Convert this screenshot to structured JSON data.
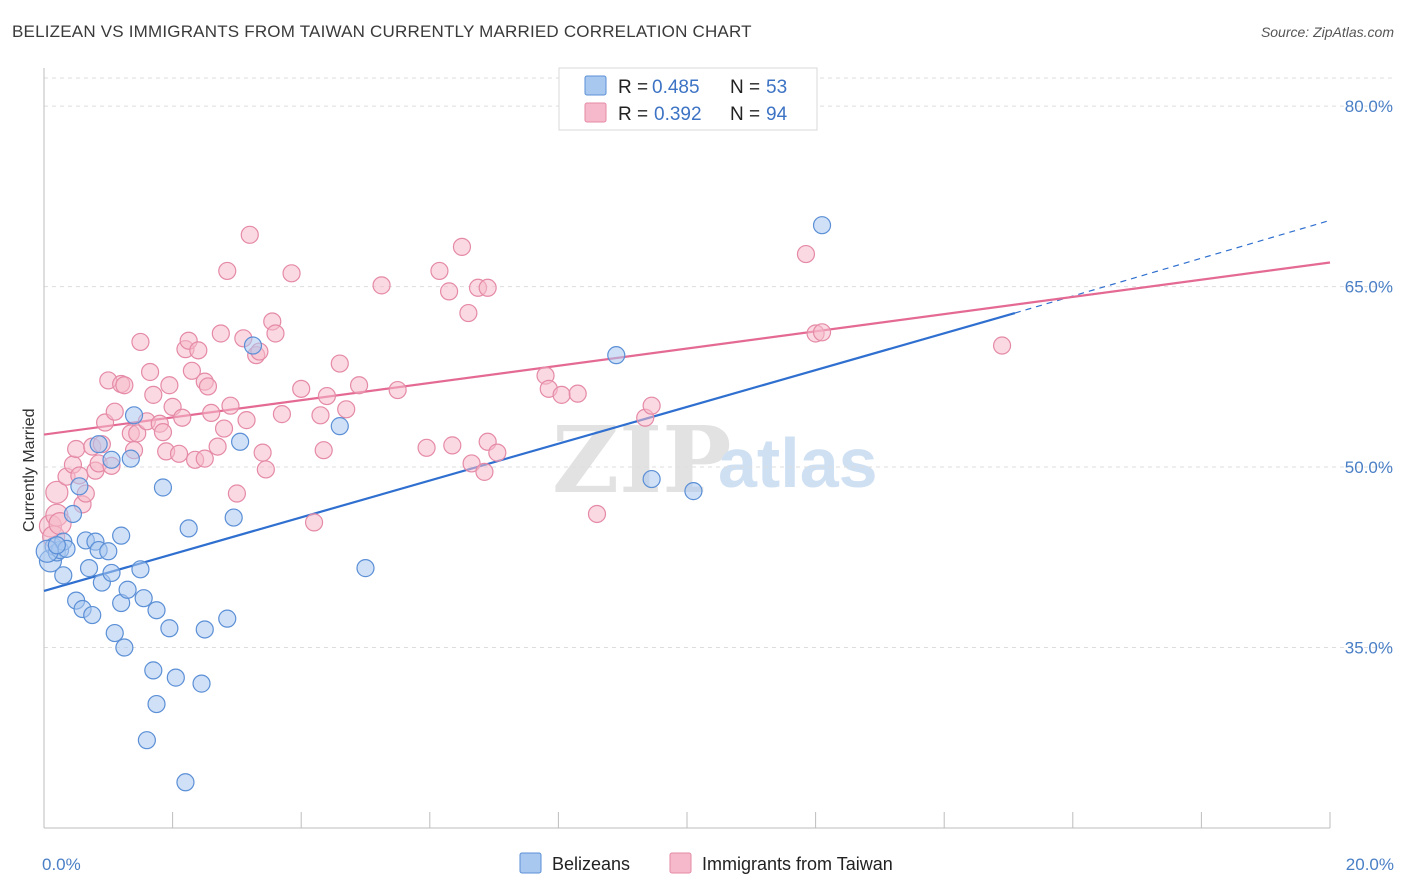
{
  "header": {
    "title": "BELIZEAN VS IMMIGRANTS FROM TAIWAN CURRENTLY MARRIED CORRELATION CHART",
    "source": "Source: ZipAtlas.com"
  },
  "watermark": {
    "zip": "ZIP",
    "atlas": "atlas"
  },
  "colors": {
    "blue_fill": "#a9c8f0",
    "blue_stroke": "#5b8fd6",
    "blue_line": "#2f6fcf",
    "pink_fill": "#f6b9cb",
    "pink_stroke": "#e58aa6",
    "pink_line": "#e46a93",
    "tick_text": "#4a7fc6",
    "grid": "#dddddd"
  },
  "legend": {
    "rows": [
      {
        "r_label": "R =",
        "r_value": "0.485",
        "n_label": "N =",
        "n_value": "53"
      },
      {
        "r_label": "R =",
        "r_value": "0.392",
        "n_label": "N =",
        "n_value": "94"
      }
    ]
  },
  "bottom_legend": [
    "Belizeans",
    "Immigrants from Taiwan"
  ],
  "chart_data": {
    "type": "scatter",
    "ylabel": "Currently Married",
    "xlim": [
      0,
      20
    ],
    "ylim": [
      20,
      83
    ],
    "x_ticks": [
      "0.0%",
      "20.0%"
    ],
    "y_ticks": [
      {
        "value": 80,
        "label": "80.0%"
      },
      {
        "value": 65,
        "label": "65.0%"
      },
      {
        "value": 50,
        "label": "50.0%"
      },
      {
        "value": 35,
        "label": "35.0%"
      }
    ],
    "grid": true,
    "legend_position": "top-center",
    "series": [
      {
        "name": "Belizeans",
        "points": [
          [
            0.1,
            42.2
          ],
          [
            0.15,
            43.4
          ],
          [
            0.2,
            42.9
          ],
          [
            0.25,
            43.1
          ],
          [
            0.3,
            43.8
          ],
          [
            0.3,
            41.0
          ],
          [
            0.35,
            43.2
          ],
          [
            0.45,
            46.1
          ],
          [
            0.5,
            38.9
          ],
          [
            0.55,
            48.4
          ],
          [
            0.6,
            38.2
          ],
          [
            0.65,
            43.9
          ],
          [
            0.7,
            41.6
          ],
          [
            0.75,
            37.7
          ],
          [
            0.8,
            43.8
          ],
          [
            0.85,
            43.1
          ],
          [
            0.85,
            51.9
          ],
          [
            0.9,
            40.4
          ],
          [
            1.0,
            43.0
          ],
          [
            1.05,
            41.2
          ],
          [
            1.05,
            50.6
          ],
          [
            1.1,
            36.2
          ],
          [
            1.2,
            38.7
          ],
          [
            1.2,
            44.3
          ],
          [
            1.25,
            35.0
          ],
          [
            1.3,
            39.8
          ],
          [
            1.35,
            50.7
          ],
          [
            1.4,
            54.3
          ],
          [
            1.5,
            41.5
          ],
          [
            1.55,
            39.1
          ],
          [
            1.7,
            33.1
          ],
          [
            1.75,
            30.3
          ],
          [
            1.75,
            38.1
          ],
          [
            1.85,
            48.3
          ],
          [
            1.95,
            36.6
          ],
          [
            2.05,
            32.5
          ],
          [
            2.25,
            44.9
          ],
          [
            2.45,
            32.0
          ],
          [
            2.5,
            36.5
          ],
          [
            2.85,
            37.4
          ],
          [
            2.95,
            45.8
          ],
          [
            3.05,
            52.1
          ],
          [
            3.25,
            60.1
          ],
          [
            4.6,
            53.4
          ],
          [
            5.0,
            41.6
          ],
          [
            1.6,
            27.3
          ],
          [
            2.2,
            23.8
          ],
          [
            8.9,
            59.3
          ],
          [
            9.45,
            49.0
          ],
          [
            10.1,
            48.0
          ],
          [
            12.1,
            70.1
          ],
          [
            0.05,
            43.0
          ],
          [
            0.2,
            43.5
          ]
        ]
      },
      {
        "name": "Immigrants from Taiwan",
        "points": [
          [
            0.1,
            45.1
          ],
          [
            0.15,
            44.2
          ],
          [
            0.2,
            46.0
          ],
          [
            0.2,
            47.9
          ],
          [
            0.25,
            45.3
          ],
          [
            0.35,
            49.2
          ],
          [
            0.45,
            50.2
          ],
          [
            0.5,
            51.5
          ],
          [
            0.55,
            49.3
          ],
          [
            0.6,
            46.9
          ],
          [
            0.65,
            47.8
          ],
          [
            0.75,
            51.7
          ],
          [
            0.8,
            49.7
          ],
          [
            0.85,
            50.3
          ],
          [
            0.9,
            51.9
          ],
          [
            0.95,
            53.7
          ],
          [
            1.0,
            57.2
          ],
          [
            1.05,
            50.1
          ],
          [
            1.1,
            54.6
          ],
          [
            1.2,
            56.9
          ],
          [
            1.25,
            56.8
          ],
          [
            1.35,
            52.8
          ],
          [
            1.4,
            51.4
          ],
          [
            1.45,
            52.8
          ],
          [
            1.5,
            60.4
          ],
          [
            1.6,
            53.8
          ],
          [
            1.65,
            57.9
          ],
          [
            1.7,
            56.0
          ],
          [
            1.8,
            53.6
          ],
          [
            1.85,
            52.9
          ],
          [
            1.9,
            51.3
          ],
          [
            1.95,
            56.8
          ],
          [
            2.0,
            55.0
          ],
          [
            2.1,
            51.1
          ],
          [
            2.15,
            54.1
          ],
          [
            2.2,
            59.8
          ],
          [
            2.25,
            60.5
          ],
          [
            2.3,
            58.0
          ],
          [
            2.35,
            50.6
          ],
          [
            2.4,
            59.7
          ],
          [
            2.5,
            57.1
          ],
          [
            2.55,
            56.7
          ],
          [
            2.6,
            54.5
          ],
          [
            2.7,
            51.7
          ],
          [
            2.75,
            61.1
          ],
          [
            2.8,
            53.2
          ],
          [
            2.85,
            66.3
          ],
          [
            2.9,
            55.1
          ],
          [
            3.0,
            47.8
          ],
          [
            3.1,
            60.7
          ],
          [
            3.15,
            53.9
          ],
          [
            3.2,
            69.3
          ],
          [
            3.3,
            59.3
          ],
          [
            3.35,
            59.6
          ],
          [
            3.4,
            51.2
          ],
          [
            3.45,
            49.8
          ],
          [
            3.55,
            62.1
          ],
          [
            3.6,
            61.1
          ],
          [
            3.7,
            54.4
          ],
          [
            3.85,
            66.1
          ],
          [
            4.0,
            56.5
          ],
          [
            4.2,
            45.4
          ],
          [
            4.3,
            54.3
          ],
          [
            4.35,
            51.4
          ],
          [
            4.4,
            55.9
          ],
          [
            4.6,
            58.6
          ],
          [
            4.7,
            54.8
          ],
          [
            4.9,
            56.8
          ],
          [
            5.25,
            65.1
          ],
          [
            5.5,
            56.4
          ],
          [
            5.95,
            51.6
          ],
          [
            6.15,
            66.3
          ],
          [
            6.3,
            64.6
          ],
          [
            6.35,
            51.8
          ],
          [
            6.5,
            68.3
          ],
          [
            6.6,
            62.8
          ],
          [
            6.75,
            64.9
          ],
          [
            6.9,
            64.9
          ],
          [
            6.9,
            52.1
          ],
          [
            6.65,
            50.3
          ],
          [
            6.85,
            49.6
          ],
          [
            7.05,
            51.2
          ],
          [
            7.8,
            57.6
          ],
          [
            7.85,
            56.5
          ],
          [
            8.05,
            56.0
          ],
          [
            8.3,
            56.1
          ],
          [
            8.6,
            46.1
          ],
          [
            9.35,
            54.1
          ],
          [
            9.45,
            55.1
          ],
          [
            11.85,
            67.7
          ],
          [
            12.0,
            61.1
          ],
          [
            12.1,
            61.2
          ],
          [
            14.9,
            60.1
          ],
          [
            2.5,
            50.7
          ]
        ]
      }
    ],
    "trendlines": [
      {
        "series": "Belizeans",
        "x": [
          0,
          15.1
        ],
        "y": [
          39.7,
          62.8
        ],
        "dashed_extension": {
          "x": [
            15.1,
            20.0
          ],
          "y": [
            62.8,
            70.5
          ]
        }
      },
      {
        "series": "Immigrants from Taiwan",
        "x": [
          0,
          20.0
        ],
        "y": [
          52.7,
          67.0
        ]
      }
    ]
  }
}
